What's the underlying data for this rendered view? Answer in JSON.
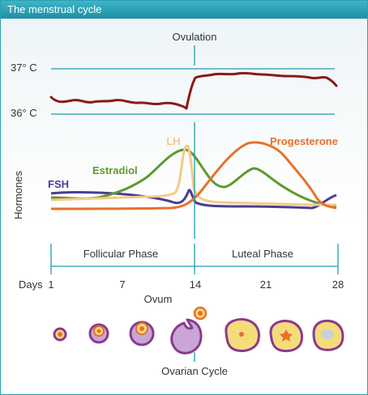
{
  "window": {
    "title": "The menstrual cycle"
  },
  "labels": {
    "ovulation": "Ovulation",
    "temp_high": "37° C",
    "temp_low": "36° C",
    "hormones_axis": "Hormones",
    "phase_follicular": "Follicular Phase",
    "phase_luteal": "Luteal Phase",
    "days_label": "Days",
    "ovum": "Ovum",
    "ovarian_cycle": "Ovarian Cycle"
  },
  "hormone_labels": {
    "lh": "LH",
    "estradiol": "Estradiol",
    "fsh": "FSH",
    "progesterone": "Progesterone"
  },
  "day_ticks": [
    "1",
    "7",
    "14",
    "21",
    "28"
  ],
  "colors": {
    "accent": "#1e9db0",
    "temperature": "#8b1a1a",
    "lh": "#f5c98a",
    "estradiol": "#5c9a2e",
    "fsh": "#4b3d8f",
    "progesterone": "#e8702a",
    "cell_purple": "#8a3a8f",
    "cell_lilac": "#c9a6d6",
    "cell_yellow": "#f5dc7a",
    "cell_orange": "#e8702a"
  }
}
